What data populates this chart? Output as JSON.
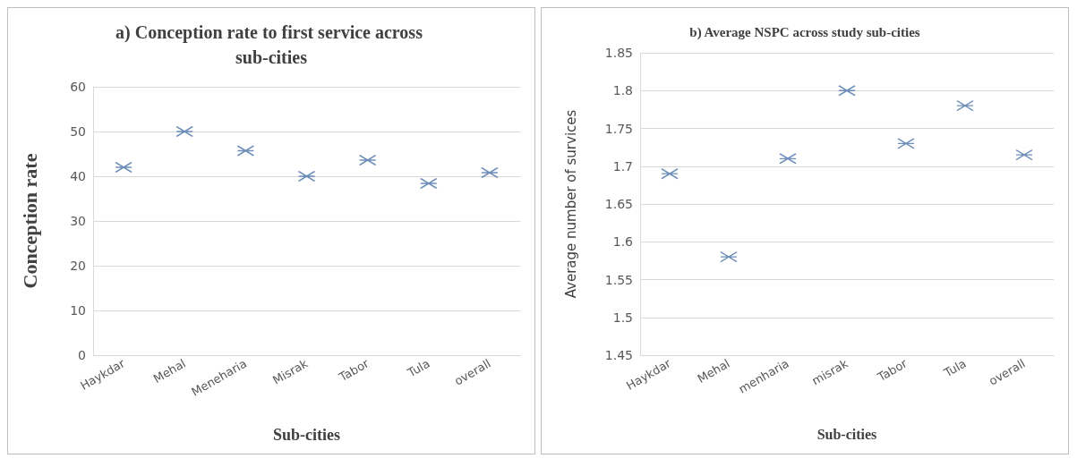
{
  "chart_data": [
    {
      "type": "scatter",
      "title": "a) Conception rate to first service across sub-cities",
      "xlabel": "Sub-cities",
      "ylabel": "Conception rate",
      "categories": [
        "Haykdar",
        "Mehal",
        "Meneharia",
        "Misrak",
        "Tabor",
        "Tula",
        "overall"
      ],
      "series": [
        {
          "color": "#4a72a8",
          "values": [
            42,
            50,
            45.7,
            40,
            43.6,
            38.4,
            40.8
          ]
        }
      ],
      "ylim": [
        0,
        60
      ],
      "yticks": [
        0,
        10,
        20,
        30,
        40,
        50,
        60
      ],
      "grid": "y",
      "marker": "cross"
    },
    {
      "type": "scatter",
      "title": "b) Average NSPC across study sub-cities",
      "xlabel": "Sub-cities",
      "ylabel": "Average number of survices",
      "categories": [
        "Haykdar",
        "Mehal",
        "menharia",
        "misrak",
        "Tabor",
        "Tula",
        "overall"
      ],
      "series": [
        {
          "color": "#4a72a8",
          "values": [
            1.69,
            1.58,
            1.71,
            1.8,
            1.73,
            1.78,
            1.715
          ]
        }
      ],
      "ylim": [
        1.45,
        1.85
      ],
      "yticks": [
        1.45,
        1.5,
        1.55,
        1.6,
        1.65,
        1.7,
        1.75,
        1.8,
        1.85
      ],
      "grid": "y",
      "marker": "cross"
    }
  ]
}
